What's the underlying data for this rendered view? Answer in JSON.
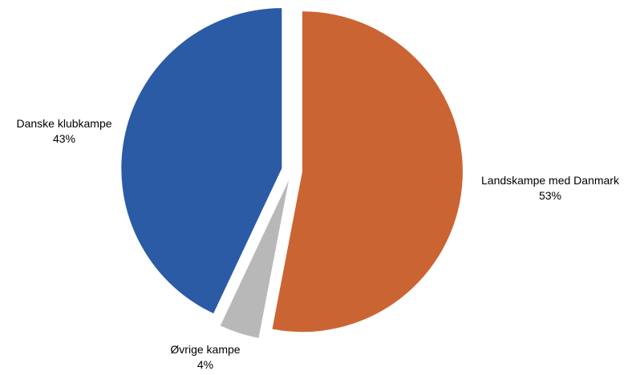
{
  "chart_data": {
    "type": "pie",
    "title": "",
    "slices": [
      {
        "label": "Landskampe med Danmark",
        "value": 53,
        "value_label": "53%",
        "color": "#cb6433"
      },
      {
        "label": "Øvrige kampe",
        "value": 4,
        "value_label": "4%",
        "color": "#b8b8b8"
      },
      {
        "label": "Danske klubkampe",
        "value": 43,
        "value_label": "43%",
        "color": "#2a5ba4"
      }
    ],
    "start_angle": "12 o'clock",
    "direction": "clockwise",
    "exploded": true,
    "legend": "none",
    "data_labels": "category name and percentage outside slices"
  }
}
